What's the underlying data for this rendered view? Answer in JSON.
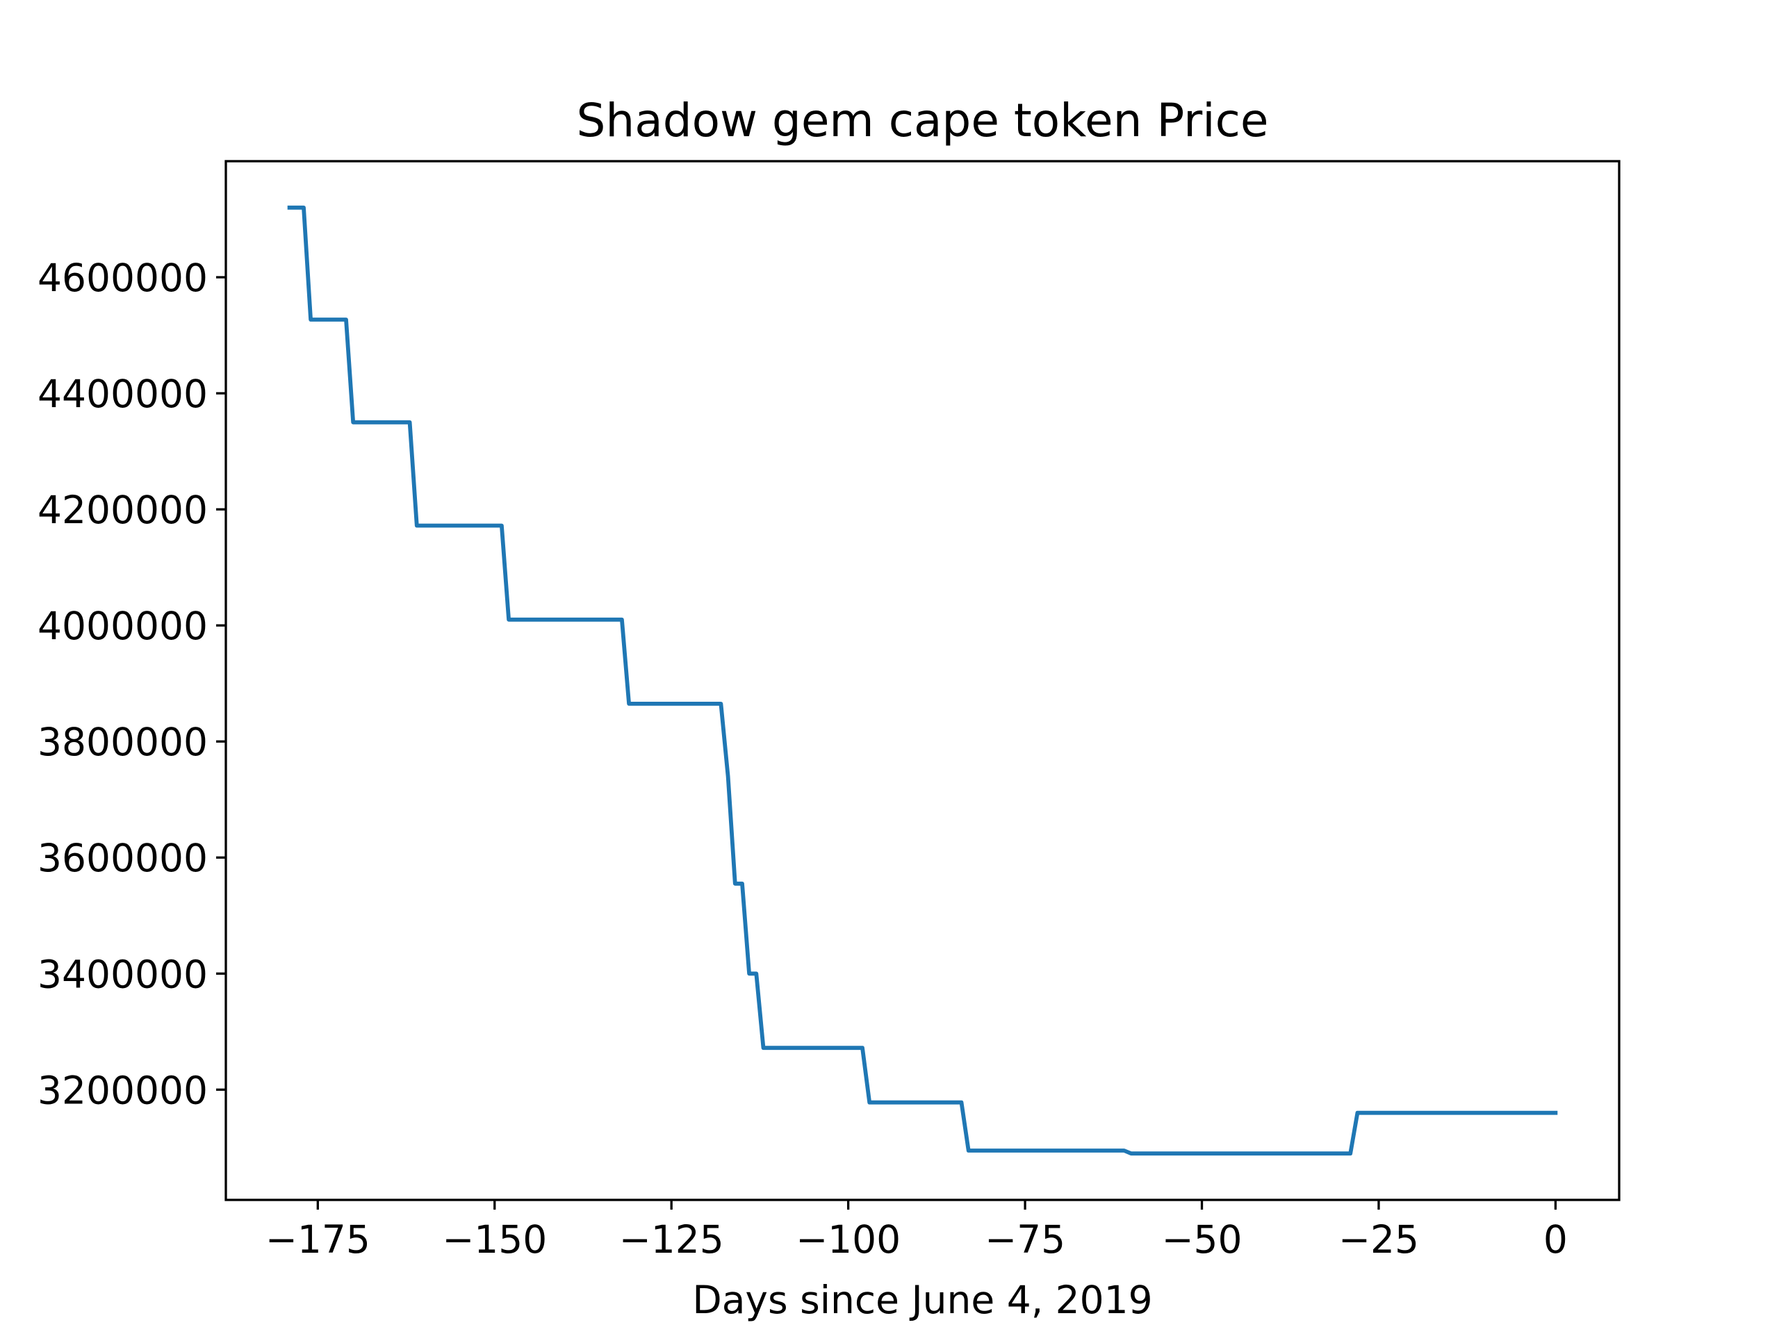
{
  "chart_data": {
    "type": "line",
    "title": "Shadow gem cape token Price",
    "xlabel": "Days since June 4, 2019",
    "ylabel": "",
    "xlim": [
      -188,
      9
    ],
    "ylim": [
      3010000,
      4800000
    ],
    "xticks": [
      -175,
      -150,
      -125,
      -100,
      -75,
      -50,
      -25,
      0
    ],
    "xtick_labels": [
      "−175",
      "−150",
      "−125",
      "−100",
      "−75",
      "−50",
      "−25",
      "0"
    ],
    "yticks": [
      3200000,
      3400000,
      3600000,
      3800000,
      4000000,
      4200000,
      4400000,
      4600000
    ],
    "ytick_labels": [
      "3200000",
      "3400000",
      "3600000",
      "3800000",
      "4000000",
      "4200000",
      "4400000",
      "4600000"
    ],
    "grid": false,
    "series": [
      {
        "color": "#1f77b4",
        "x": [
          -179,
          -177,
          -176,
          -171,
          -170,
          -162,
          -161,
          -149,
          -148,
          -132,
          -131,
          -118,
          -117,
          -116,
          -115,
          -114,
          -113,
          -112,
          -98,
          -97,
          -84,
          -83,
          -61,
          -60,
          -29,
          -28,
          0
        ],
        "y": [
          4720000,
          4720000,
          4527000,
          4527000,
          4350000,
          4350000,
          4172000,
          4172000,
          4010000,
          4010000,
          3865000,
          3865000,
          3740000,
          3555000,
          3555000,
          3400000,
          3400000,
          3272000,
          3272000,
          3178000,
          3178000,
          3095000,
          3095000,
          3090000,
          3090000,
          3160000,
          3160000
        ]
      }
    ]
  }
}
